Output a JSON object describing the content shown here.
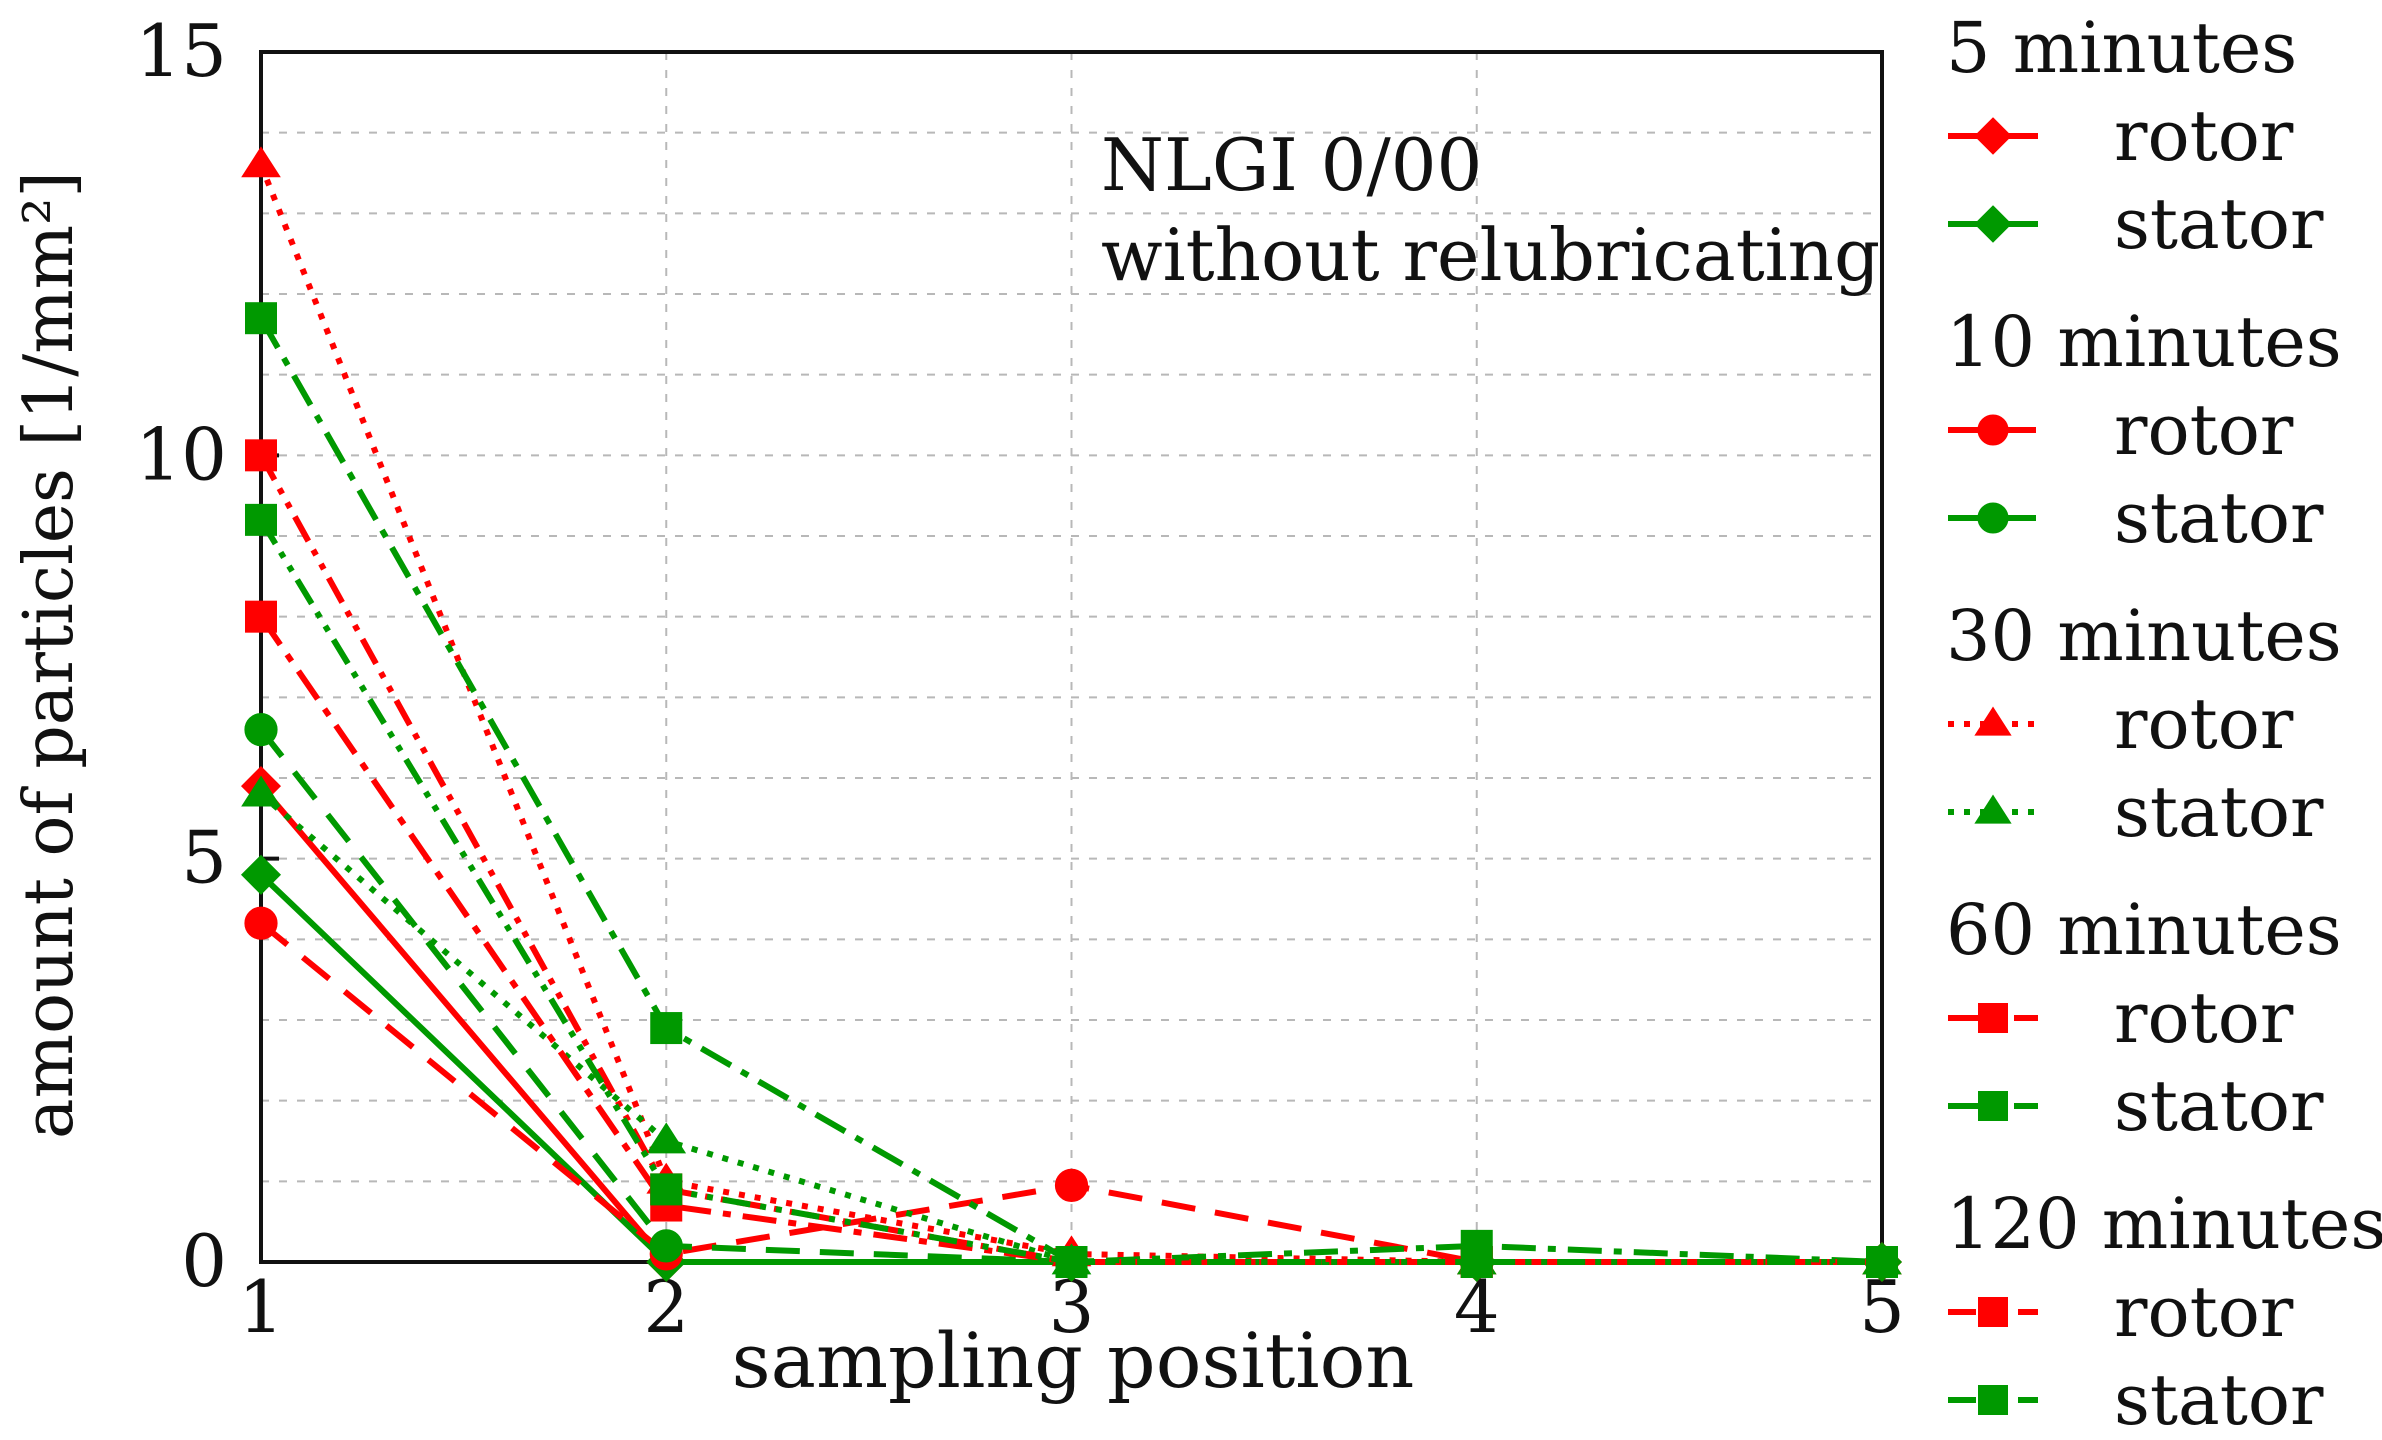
{
  "chart_data": {
    "type": "line",
    "title": "",
    "xlabel": "sampling position",
    "ylabel": "amount of particles [1/mm²]",
    "xlim": [
      1,
      5
    ],
    "ylim": [
      0,
      15
    ],
    "x": [
      1,
      2,
      3,
      4,
      5
    ],
    "xticks": [
      "1",
      "2",
      "3",
      "4",
      "5"
    ],
    "yticks": [
      "0",
      "5",
      "10",
      "15"
    ],
    "annotation": [
      "NLGI 0/00",
      "without relubricating"
    ],
    "legend_position": "right",
    "colors": {
      "rotor": "#ff0000",
      "stator": "#009900",
      "grid": "#b8b8b8",
      "axis": "#111111"
    },
    "legend": [
      {
        "title": "5 minutes",
        "entries": [
          {
            "label": "rotor",
            "series": 0
          },
          {
            "label": "stator",
            "series": 1
          }
        ]
      },
      {
        "title": "10 minutes",
        "entries": [
          {
            "label": "rotor",
            "series": 2
          },
          {
            "label": "stator",
            "series": 3
          }
        ]
      },
      {
        "title": "30 minutes",
        "entries": [
          {
            "label": "rotor",
            "series": 4
          },
          {
            "label": "stator",
            "series": 5
          }
        ]
      },
      {
        "title": "60 minutes",
        "entries": [
          {
            "label": "rotor",
            "series": 6
          },
          {
            "label": "stator",
            "series": 7
          }
        ]
      },
      {
        "title": "120 minutes",
        "entries": [
          {
            "label": "rotor",
            "series": 8
          },
          {
            "label": "stator",
            "series": 9
          }
        ]
      }
    ],
    "series": [
      {
        "name": "5 minutes rotor",
        "group": "5 minutes",
        "component": "rotor",
        "color": "#ff0000",
        "line_style": "solid",
        "marker": "diamond",
        "values": [
          5.9,
          0,
          0,
          0,
          0
        ]
      },
      {
        "name": "5 minutes stator",
        "group": "5 minutes",
        "component": "stator",
        "color": "#009900",
        "line_style": "solid",
        "marker": "diamond",
        "values": [
          4.8,
          0,
          0,
          0,
          0
        ]
      },
      {
        "name": "10 minutes rotor",
        "group": "10 minutes",
        "component": "rotor",
        "color": "#ff0000",
        "line_style": "dashed",
        "marker": "circle",
        "values": [
          4.2,
          0.1,
          0.95,
          0,
          0
        ]
      },
      {
        "name": "10 minutes stator",
        "group": "10 minutes",
        "component": "stator",
        "color": "#009900",
        "line_style": "dashed",
        "marker": "circle",
        "values": [
          6.6,
          0.2,
          0,
          0,
          0
        ]
      },
      {
        "name": "30 minutes rotor",
        "group": "30 minutes",
        "component": "rotor",
        "color": "#ff0000",
        "line_style": "dotted",
        "marker": "triangle",
        "values": [
          13.6,
          1.0,
          0.1,
          0,
          0
        ]
      },
      {
        "name": "30 minutes stator",
        "group": "30 minutes",
        "component": "stator",
        "color": "#009900",
        "line_style": "dotted",
        "marker": "triangle",
        "values": [
          5.8,
          1.5,
          0,
          0,
          0
        ]
      },
      {
        "name": "60 minutes rotor",
        "group": "60 minutes",
        "component": "rotor",
        "color": "#ff0000",
        "line_style": "dashdot",
        "marker": "square",
        "values": [
          8.0,
          0.7,
          0,
          0,
          0
        ]
      },
      {
        "name": "60 minutes stator",
        "group": "60 minutes",
        "component": "stator",
        "color": "#009900",
        "line_style": "dashdot",
        "marker": "square",
        "values": [
          11.7,
          2.9,
          0,
          0.2,
          0
        ]
      },
      {
        "name": "120 minutes rotor",
        "group": "120 minutes",
        "component": "rotor",
        "color": "#ff0000",
        "line_style": "dashdotdot",
        "marker": "square",
        "values": [
          10.0,
          0.9,
          0,
          0,
          0
        ]
      },
      {
        "name": "120 minutes stator",
        "group": "120 minutes",
        "component": "stator",
        "color": "#009900",
        "line_style": "dashdotdot",
        "marker": "square",
        "values": [
          9.2,
          0.9,
          0,
          0,
          0
        ]
      }
    ]
  }
}
